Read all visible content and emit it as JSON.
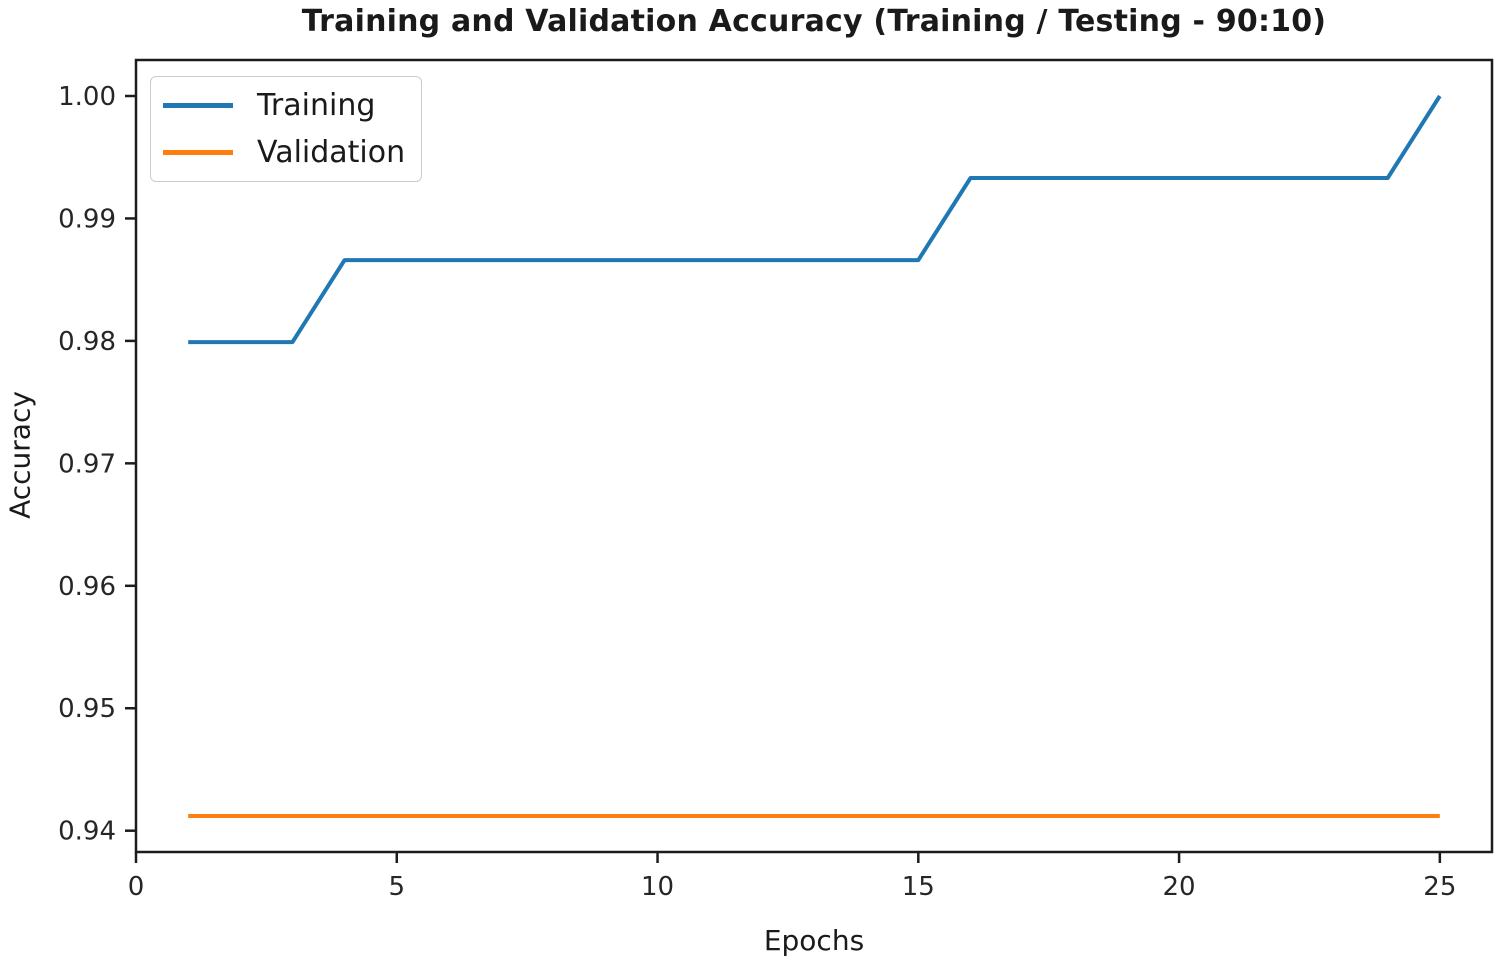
{
  "chart_data": {
    "type": "line",
    "title": "Training and Validation Accuracy (Training / Testing - 90:10)",
    "xlabel": "Epochs",
    "ylabel": "Accuracy",
    "grid": false,
    "legend_position": "upper left",
    "axis_color": "#1c1c1c",
    "tick_label_color": "#262626",
    "title_color": "#1a1a1a",
    "xlim": [
      0,
      26
    ],
    "ylim": [
      0.93826,
      1.00294
    ],
    "xticks": [
      {
        "v": 0,
        "label": "0"
      },
      {
        "v": 5,
        "label": "5"
      },
      {
        "v": 10,
        "label": "10"
      },
      {
        "v": 15,
        "label": "15"
      },
      {
        "v": 20,
        "label": "20"
      },
      {
        "v": 25,
        "label": "25"
      }
    ],
    "yticks": [
      {
        "v": 0.94,
        "label": "0.94"
      },
      {
        "v": 0.95,
        "label": "0.95"
      },
      {
        "v": 0.96,
        "label": "0.96"
      },
      {
        "v": 0.97,
        "label": "0.97"
      },
      {
        "v": 0.98,
        "label": "0.98"
      },
      {
        "v": 0.99,
        "label": "0.99"
      },
      {
        "v": 1.0,
        "label": "1.00"
      }
    ],
    "x": [
      1,
      2,
      3,
      4,
      5,
      6,
      7,
      8,
      9,
      10,
      11,
      12,
      13,
      14,
      15,
      16,
      17,
      18,
      19,
      20,
      21,
      22,
      23,
      24,
      25
    ],
    "series": [
      {
        "name": "Training",
        "color": "#1f77b4",
        "values": [
          0.9799,
          0.9799,
          0.9799,
          0.9866,
          0.9866,
          0.9866,
          0.9866,
          0.9866,
          0.9866,
          0.9866,
          0.9866,
          0.9866,
          0.9866,
          0.9866,
          0.9866,
          0.9933,
          0.9933,
          0.9933,
          0.9933,
          0.9933,
          0.9933,
          0.9933,
          0.9933,
          0.9933,
          1.0
        ]
      },
      {
        "name": "Validation",
        "color": "#ff7f0e",
        "values": [
          0.9412,
          0.9412,
          0.9412,
          0.9412,
          0.9412,
          0.9412,
          0.9412,
          0.9412,
          0.9412,
          0.9412,
          0.9412,
          0.9412,
          0.9412,
          0.9412,
          0.9412,
          0.9412,
          0.9412,
          0.9412,
          0.9412,
          0.9412,
          0.9412,
          0.9412,
          0.9412,
          0.9412,
          0.9412
        ]
      }
    ]
  }
}
